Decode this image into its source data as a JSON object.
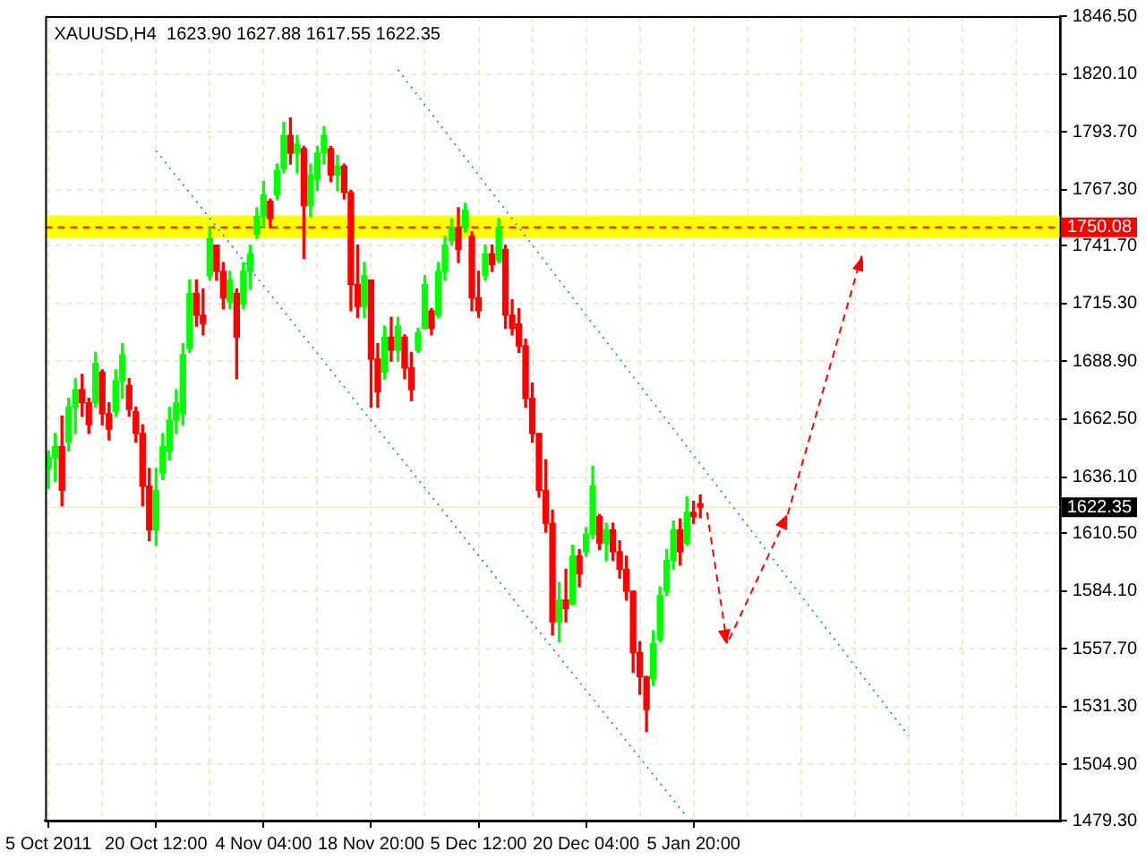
{
  "chart_data": {
    "type": "candlestick",
    "title": "XAUUSD,H4  1623.90 1627.88 1617.55 1622.35",
    "categories": [
      "5 Oct 2011",
      null,
      null,
      null,
      null,
      null,
      null,
      null,
      null,
      null,
      null,
      null,
      null,
      null,
      null,
      null,
      "20 Oct 12:00",
      null,
      null,
      null,
      null,
      null,
      null,
      null,
      null,
      null,
      null,
      null,
      null,
      null,
      null,
      null,
      "4 Nov 04:00",
      null,
      null,
      null,
      null,
      null,
      null,
      null,
      null,
      null,
      null,
      null,
      null,
      null,
      null,
      null,
      "18 Nov 20:00",
      null,
      null,
      null,
      null,
      null,
      null,
      null,
      null,
      null,
      null,
      null,
      null,
      null,
      null,
      null,
      "5 Dec 12:00",
      null,
      null,
      null,
      null,
      null,
      null,
      null,
      null,
      null,
      null,
      null,
      null,
      null,
      null,
      null,
      "20 Dec 04:00",
      null,
      null,
      null,
      null,
      null,
      null,
      null,
      null,
      null,
      null,
      null,
      null,
      null,
      null,
      null,
      "5 Jan 20:00",
      null,
      null,
      null,
      null,
      null,
      null,
      null,
      null,
      null,
      null,
      null,
      null,
      null,
      null,
      null,
      null,
      null,
      null,
      null,
      null,
      null,
      null,
      null,
      null,
      null,
      null,
      null,
      null,
      null,
      null,
      null,
      null,
      null,
      null,
      null,
      null,
      null,
      null,
      null,
      null,
      null,
      null,
      null,
      null,
      null,
      null,
      null,
      null,
      null,
      null,
      null,
      null,
      null,
      null
    ],
    "ohlc": [
      [
        1640,
        1648,
        1631,
        1645
      ],
      [
        1645,
        1656,
        1634,
        1650
      ],
      [
        1650,
        1664,
        1623,
        1630
      ],
      [
        1652,
        1672,
        1648,
        1668
      ],
      [
        1668,
        1681,
        1656,
        1676
      ],
      [
        1676,
        1683,
        1664,
        1670
      ],
      [
        1670,
        1672,
        1656,
        1660
      ],
      [
        1670,
        1693,
        1668,
        1688
      ],
      [
        1684,
        1685,
        1660,
        1665
      ],
      [
        1665,
        1670,
        1653,
        1658
      ],
      [
        1666,
        1685,
        1664,
        1680
      ],
      [
        1680,
        1697,
        1672,
        1692
      ],
      [
        1678,
        1681,
        1664,
        1667
      ],
      [
        1666,
        1668,
        1652,
        1656
      ],
      [
        1656,
        1660,
        1623,
        1632
      ],
      [
        1632,
        1640,
        1607,
        1612
      ],
      [
        1612,
        1640,
        1605,
        1630
      ],
      [
        1638,
        1656,
        1635,
        1650
      ],
      [
        1648,
        1668,
        1644,
        1662
      ],
      [
        1662,
        1676,
        1656,
        1670
      ],
      [
        1665,
        1697,
        1660,
        1692
      ],
      [
        1695,
        1726,
        1693,
        1720
      ],
      [
        1720,
        1726,
        1705,
        1710
      ],
      [
        1710,
        1722,
        1701,
        1706
      ],
      [
        1728,
        1750,
        1726,
        1745
      ],
      [
        1742,
        1742,
        1726,
        1730
      ],
      [
        1730,
        1734,
        1713,
        1718
      ],
      [
        1716,
        1730,
        1713,
        1726
      ],
      [
        1720,
        1722,
        1681,
        1700
      ],
      [
        1715,
        1734,
        1713,
        1730
      ],
      [
        1730,
        1742,
        1722,
        1738
      ],
      [
        1747,
        1759,
        1745,
        1755
      ],
      [
        1755,
        1771,
        1750,
        1765
      ],
      [
        1762,
        1763,
        1750,
        1754
      ],
      [
        1765,
        1779,
        1763,
        1776
      ],
      [
        1777,
        1798,
        1775,
        1792
      ],
      [
        1792,
        1800,
        1779,
        1784
      ],
      [
        1784,
        1792,
        1775,
        1788
      ],
      [
        1786,
        1787,
        1736,
        1760
      ],
      [
        1760,
        1779,
        1755,
        1774
      ],
      [
        1772,
        1787,
        1767,
        1784
      ],
      [
        1784,
        1796,
        1779,
        1792
      ],
      [
        1786,
        1787,
        1771,
        1774
      ],
      [
        1774,
        1783,
        1767,
        1778
      ],
      [
        1778,
        1779,
        1763,
        1766
      ],
      [
        1766,
        1767,
        1712,
        1724
      ],
      [
        1724,
        1742,
        1709,
        1714
      ],
      [
        1714,
        1734,
        1709,
        1728
      ],
      [
        1726,
        1726,
        1668,
        1690
      ],
      [
        1690,
        1697,
        1668,
        1675
      ],
      [
        1684,
        1705,
        1681,
        1700
      ],
      [
        1700,
        1709,
        1689,
        1694
      ],
      [
        1694,
        1709,
        1689,
        1705
      ],
      [
        1700,
        1701,
        1681,
        1686
      ],
      [
        1686,
        1693,
        1671,
        1676
      ],
      [
        1694,
        1704,
        1693,
        1702
      ],
      [
        1704,
        1728,
        1704,
        1724
      ],
      [
        1712,
        1713,
        1701,
        1704
      ],
      [
        1710,
        1734,
        1709,
        1730
      ],
      [
        1730,
        1746,
        1726,
        1742
      ],
      [
        1744,
        1754,
        1742,
        1750
      ],
      [
        1750,
        1759,
        1734,
        1740
      ],
      [
        1750,
        1761,
        1748,
        1758
      ],
      [
        1746,
        1748,
        1712,
        1718
      ],
      [
        1718,
        1730,
        1709,
        1712
      ],
      [
        1728,
        1742,
        1726,
        1738
      ],
      [
        1738,
        1742,
        1730,
        1733
      ],
      [
        1735,
        1754,
        1734,
        1750
      ],
      [
        1740,
        1742,
        1704,
        1710
      ],
      [
        1710,
        1717,
        1701,
        1704
      ],
      [
        1706,
        1713,
        1693,
        1696
      ],
      [
        1696,
        1699,
        1668,
        1672
      ],
      [
        1672,
        1679,
        1652,
        1656
      ],
      [
        1656,
        1656,
        1627,
        1630
      ],
      [
        1630,
        1644,
        1611,
        1615
      ],
      [
        1615,
        1621,
        1564,
        1570
      ],
      [
        1570,
        1588,
        1561,
        1580
      ],
      [
        1580,
        1594,
        1570,
        1576
      ],
      [
        1578,
        1605,
        1578,
        1600
      ],
      [
        1600,
        1603,
        1586,
        1592
      ],
      [
        1602,
        1613,
        1600,
        1610
      ],
      [
        1610,
        1641,
        1608,
        1632
      ],
      [
        1618,
        1619,
        1603,
        1606
      ],
      [
        1606,
        1615,
        1598,
        1612
      ],
      [
        1612,
        1615,
        1598,
        1602
      ],
      [
        1602,
        1607,
        1590,
        1594
      ],
      [
        1594,
        1600,
        1580,
        1584
      ],
      [
        1584,
        1584,
        1547,
        1556
      ],
      [
        1556,
        1561,
        1537,
        1545
      ],
      [
        1545,
        1545,
        1520,
        1530
      ],
      [
        1544,
        1566,
        1541,
        1560
      ],
      [
        1562,
        1586,
        1561,
        1582
      ],
      [
        1584,
        1603,
        1582,
        1598
      ],
      [
        1598,
        1616,
        1594,
        1612
      ],
      [
        1612,
        1617,
        1596,
        1602
      ],
      [
        1606,
        1627,
        1605,
        1620
      ],
      [
        1620,
        1625,
        1615,
        1618
      ],
      [
        1623.9,
        1627.88,
        1617.55,
        1622.35
      ],
      null,
      null,
      null,
      null,
      null,
      null,
      null,
      null,
      null,
      null,
      null,
      null,
      null,
      null,
      null,
      null,
      null,
      null,
      null,
      null,
      null,
      null,
      null,
      null,
      null,
      null,
      null,
      null,
      null,
      null,
      null,
      null,
      null,
      null,
      null,
      null,
      null,
      null,
      null,
      null,
      null,
      null,
      null,
      null,
      null,
      null,
      null,
      null,
      null,
      null,
      null,
      null,
      null
    ],
    "colors": [
      "#00ff00",
      "#00ff00",
      "#ff0000",
      "#00ff00",
      "#00ff00",
      "#ff0000",
      "#ff0000",
      "#00ff00",
      "#ff0000",
      "#ff0000",
      "#00ff00",
      "#00ff00",
      "#ff0000",
      "#ff0000",
      "#ff0000",
      "#ff0000",
      "#00ff00",
      "#00ff00",
      "#00ff00",
      "#00ff00",
      "#00ff00",
      "#00ff00",
      "#ff0000",
      "#ff0000",
      "#00ff00",
      "#ff0000",
      "#ff0000",
      "#00ff00",
      "#ff0000",
      "#00ff00",
      "#00ff00",
      "#00ff00",
      "#00ff00",
      "#ff0000",
      "#00ff00",
      "#00ff00",
      "#ff0000",
      "#00ff00",
      "#ff0000",
      "#00ff00",
      "#00ff00",
      "#00ff00",
      "#ff0000",
      "#00ff00",
      "#ff0000",
      "#ff0000",
      "#ff0000",
      "#00ff00",
      "#ff0000",
      "#ff0000",
      "#00ff00",
      "#ff0000",
      "#00ff00",
      "#ff0000",
      "#ff0000",
      "#00ff00",
      "#00ff00",
      "#ff0000",
      "#00ff00",
      "#00ff00",
      "#00ff00",
      "#ff0000",
      "#00ff00",
      "#ff0000",
      "#ff0000",
      "#00ff00",
      "#ff0000",
      "#00ff00",
      "#ff0000",
      "#ff0000",
      "#ff0000",
      "#ff0000",
      "#ff0000",
      "#ff0000",
      "#ff0000",
      "#ff0000",
      "#00ff00",
      "#ff0000",
      "#00ff00",
      "#ff0000",
      "#00ff00",
      "#00ff00",
      "#ff0000",
      "#00ff00",
      "#ff0000",
      "#ff0000",
      "#ff0000",
      "#ff0000",
      "#ff0000",
      "#ff0000",
      "#00ff00",
      "#00ff00",
      "#00ff00",
      "#00ff00",
      "#ff0000",
      "#00ff00",
      "#ff0000",
      "#ff0000",
      null,
      null,
      null,
      null,
      null,
      null,
      null,
      null,
      null,
      null,
      null,
      null,
      null,
      null,
      null,
      null,
      null,
      null,
      null,
      null,
      null,
      null,
      null,
      null,
      null,
      null,
      null,
      null,
      null,
      null,
      null,
      null,
      null,
      null,
      null,
      null,
      null,
      null,
      null,
      null,
      null,
      null,
      null,
      null,
      null,
      null,
      null,
      null,
      null,
      null,
      null,
      null,
      null
    ],
    "series": [
      {
        "type": "line",
        "color": "#1e90ff",
        "line_style": "dotted",
        "values": [
          null,
          null,
          null,
          null,
          null,
          null,
          null,
          null,
          null,
          null,
          null,
          null,
          null,
          null,
          null,
          null,
          null,
          null,
          null,
          null,
          null,
          null,
          null,
          null,
          null,
          null,
          null,
          null,
          null,
          null,
          null,
          null,
          null,
          null,
          null,
          null,
          null,
          null,
          null,
          null,
          null,
          null,
          null,
          null,
          null,
          null,
          null,
          null,
          null,
          null,
          null,
          null,
          1822,
          null,
          null,
          null,
          null,
          null,
          null,
          null,
          null,
          null,
          null,
          null,
          null,
          null,
          null,
          null,
          null,
          null,
          null,
          null,
          null,
          null,
          null,
          null,
          null,
          null,
          null,
          null,
          null,
          null,
          null,
          null,
          null,
          null,
          null,
          null,
          null,
          null,
          null,
          null,
          null,
          null,
          null,
          null,
          null,
          null,
          null,
          null,
          null,
          null,
          null,
          null,
          null,
          null,
          null,
          null,
          null,
          null,
          null,
          null,
          null,
          null,
          null,
          null,
          null,
          null,
          null,
          null,
          null,
          null,
          null,
          null,
          null,
          null,
          null,
          null,
          1518,
          null,
          null,
          null,
          null,
          null,
          null,
          null,
          null,
          null,
          null,
          null,
          null,
          null,
          null,
          null,
          null,
          null,
          null,
          null,
          null,
          null,
          null
        ]
      },
      {
        "type": "line",
        "color": "#1e90ff",
        "line_style": "dotted",
        "values": [
          null,
          null,
          null,
          null,
          null,
          null,
          null,
          null,
          null,
          null,
          null,
          null,
          null,
          null,
          null,
          null,
          1785,
          null,
          null,
          null,
          null,
          null,
          null,
          null,
          null,
          null,
          null,
          null,
          null,
          null,
          null,
          null,
          null,
          null,
          null,
          null,
          null,
          null,
          null,
          null,
          null,
          null,
          null,
          null,
          null,
          null,
          null,
          null,
          null,
          null,
          null,
          null,
          null,
          null,
          null,
          null,
          null,
          null,
          null,
          null,
          null,
          null,
          null,
          null,
          null,
          null,
          null,
          null,
          null,
          null,
          null,
          null,
          null,
          null,
          null,
          null,
          null,
          null,
          null,
          null,
          null,
          null,
          null,
          null,
          null,
          null,
          null,
          null,
          null,
          null,
          null,
          null,
          null,
          null,
          null,
          1481,
          null,
          null,
          null,
          null,
          null,
          null,
          null,
          null,
          null,
          null,
          null,
          null,
          null,
          null,
          null,
          null,
          null,
          null,
          null,
          null,
          null,
          null,
          null,
          null,
          null,
          null,
          null,
          null,
          null,
          null,
          null,
          null,
          null,
          null,
          null,
          null,
          null,
          null,
          null,
          null,
          null,
          null,
          null,
          null,
          null,
          null,
          null,
          null,
          null,
          null,
          null,
          null,
          null,
          null,
          null
        ]
      },
      {
        "type": "line",
        "color": "#ff0000",
        "line_style": "dashed",
        "values": [
          null,
          null,
          null,
          null,
          null,
          null,
          null,
          null,
          null,
          null,
          null,
          null,
          null,
          null,
          null,
          null,
          null,
          null,
          null,
          null,
          null,
          null,
          null,
          null,
          null,
          null,
          null,
          null,
          null,
          null,
          null,
          null,
          null,
          null,
          null,
          null,
          null,
          null,
          null,
          null,
          null,
          null,
          null,
          null,
          null,
          null,
          null,
          null,
          null,
          null,
          null,
          null,
          null,
          null,
          null,
          null,
          null,
          null,
          null,
          null,
          null,
          null,
          null,
          null,
          null,
          null,
          null,
          null,
          null,
          null,
          null,
          null,
          null,
          null,
          null,
          null,
          null,
          null,
          null,
          null,
          null,
          null,
          null,
          null,
          null,
          null,
          null,
          null,
          null,
          null,
          null,
          null,
          null,
          null,
          null,
          null,
          null,
          null,
          1620,
          null,
          null,
          1560,
          null,
          null,
          null,
          null,
          null,
          null,
          null,
          null,
          1619,
          null,
          null,
          null,
          null,
          null,
          null,
          null,
          null,
          null,
          null,
          1737,
          null,
          null,
          null,
          null,
          null,
          null,
          null,
          null,
          null,
          null,
          null,
          null,
          null,
          null,
          null,
          null,
          null,
          null,
          null,
          null,
          null,
          null,
          null,
          null,
          null,
          null,
          null,
          null,
          null
        ]
      }
    ],
    "ylim": [
      1479.3,
      1846.5
    ],
    "yticks": [
      {
        "value": 1846.5,
        "label": "1846.50"
      },
      {
        "value": 1820.1,
        "label": "1820.10"
      },
      {
        "value": 1793.7,
        "label": "1793.70"
      },
      {
        "value": 1767.3,
        "label": "1767.30"
      },
      {
        "value": 1741.7,
        "label": "1741.70"
      },
      {
        "value": 1715.3,
        "label": "1715.30"
      },
      {
        "value": 1688.9,
        "label": "1688.90"
      },
      {
        "value": 1662.5,
        "label": "1662.50"
      },
      {
        "value": 1636.1,
        "label": "1636.10"
      },
      {
        "value": 1610.5,
        "label": "1610.50"
      },
      {
        "value": 1584.1,
        "label": "1584.10"
      },
      {
        "value": 1557.7,
        "label": "1557.70"
      },
      {
        "value": 1531.3,
        "label": "1531.30"
      },
      {
        "value": 1504.9,
        "label": "1504.90"
      },
      {
        "value": 1479.3,
        "label": "1479.30"
      }
    ],
    "grid": true,
    "bands": [
      {
        "axis": "y",
        "from": 1745.5,
        "to": 1755.5,
        "color": "#ffff00"
      }
    ],
    "ref_lines": [
      {
        "axis": "y",
        "value": 1750.08,
        "label": "1750.08",
        "color": "#ff0000",
        "line_style": "dashed"
      },
      {
        "axis": "y",
        "value": 1622.35,
        "label": "1622.35",
        "color": "#f0f0c8",
        "line_style": "solid"
      }
    ]
  }
}
